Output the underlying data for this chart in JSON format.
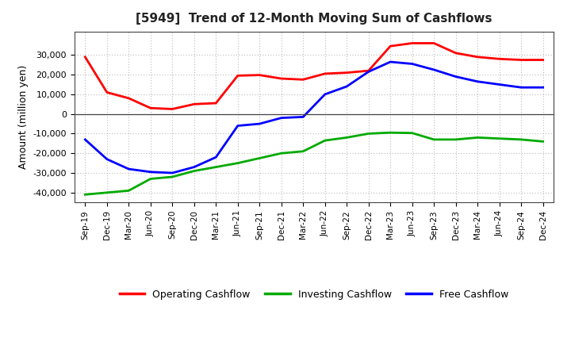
{
  "title": "[5949]  Trend of 12-Month Moving Sum of Cashflows",
  "ylabel": "Amount (million yen)",
  "background_color": "#ffffff",
  "grid_color": "#bbbbbb",
  "x_labels": [
    "Sep-19",
    "Dec-19",
    "Mar-20",
    "Jun-20",
    "Sep-20",
    "Dec-20",
    "Mar-21",
    "Jun-21",
    "Sep-21",
    "Dec-21",
    "Mar-22",
    "Jun-22",
    "Sep-22",
    "Dec-22",
    "Mar-23",
    "Jun-23",
    "Sep-23",
    "Dec-23",
    "Mar-24",
    "Jun-24",
    "Sep-24",
    "Dec-24"
  ],
  "operating_cashflow": [
    29000,
    11000,
    8000,
    3000,
    2500,
    5000,
    5500,
    19500,
    19800,
    18000,
    17500,
    20500,
    21000,
    22000,
    34500,
    36000,
    36000,
    31000,
    29000,
    28000,
    27500,
    27500
  ],
  "investing_cashflow": [
    -41000,
    -40000,
    -39000,
    -33000,
    -32000,
    -29000,
    -27000,
    -25000,
    -22500,
    -20000,
    -19000,
    -13500,
    -12000,
    -10000,
    -9500,
    -9700,
    -13000,
    -13000,
    -12000,
    -12500,
    -13000,
    -14000
  ],
  "free_cashflow": [
    -13000,
    -23000,
    -28000,
    -29500,
    -30000,
    -27000,
    -22000,
    -6000,
    -5000,
    -2000,
    -1500,
    10000,
    14000,
    21500,
    26500,
    25500,
    22500,
    19000,
    16500,
    15000,
    13500,
    13500
  ],
  "operating_color": "#ff0000",
  "investing_color": "#00aa00",
  "free_color": "#0000ff",
  "ylim": [
    -45000,
    42000
  ],
  "yticks": [
    -40000,
    -30000,
    -20000,
    -10000,
    0,
    10000,
    20000,
    30000
  ],
  "line_width": 2.0
}
